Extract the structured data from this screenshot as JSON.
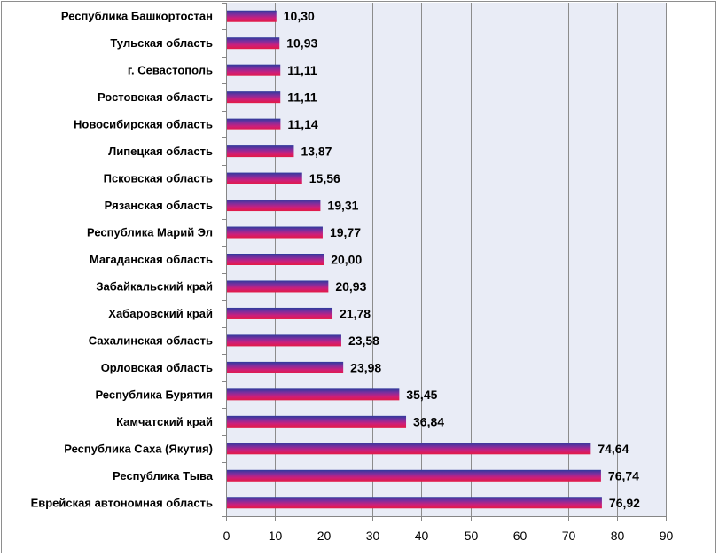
{
  "chart_data": {
    "type": "bar",
    "orientation": "horizontal",
    "categories": [
      "Республика Башкортостан",
      "Тульская область",
      "г. Севастополь",
      "Ростовская область",
      "Новосибирская область",
      "Липецкая область",
      "Псковская область",
      "Рязанская область",
      "Республика Марий Эл",
      "Магаданская область",
      "Забайкальский край",
      "Хабаровский край",
      "Сахалинская область",
      "Орловская область",
      "Республика Бурятия",
      "Камчатский край",
      "Республика Саха (Якутия)",
      "Республика Тыва",
      "Еврейская автономная область"
    ],
    "values": [
      10.3,
      10.93,
      11.11,
      11.11,
      11.14,
      13.87,
      15.56,
      19.31,
      19.77,
      20.0,
      20.93,
      21.78,
      23.58,
      23.98,
      35.45,
      36.84,
      74.64,
      76.74,
      76.92
    ],
    "data_labels": [
      "10,30",
      "10,93",
      "11,11",
      "11,11",
      "11,14",
      "13,87",
      "15,56",
      "19,31",
      "19,77",
      "20,00",
      "20,93",
      "21,78",
      "23,58",
      "23,98",
      "35,45",
      "36,84",
      "74,64",
      "76,74",
      "76,92"
    ],
    "xlim": [
      0,
      90
    ],
    "xticks": [
      0,
      10,
      20,
      30,
      40,
      50,
      60,
      70,
      80,
      90
    ],
    "grid": true,
    "legend": "none"
  },
  "colors": {
    "frame": "#8E8E8E",
    "plot_background": "#E9ECF6",
    "gridline": "#8C8C8C",
    "axis": "#868686",
    "bar_gradient": [
      "#2E3A9C",
      "#7E2E9E",
      "#CC1F7C",
      "#E31A45"
    ],
    "text": "#000000"
  }
}
